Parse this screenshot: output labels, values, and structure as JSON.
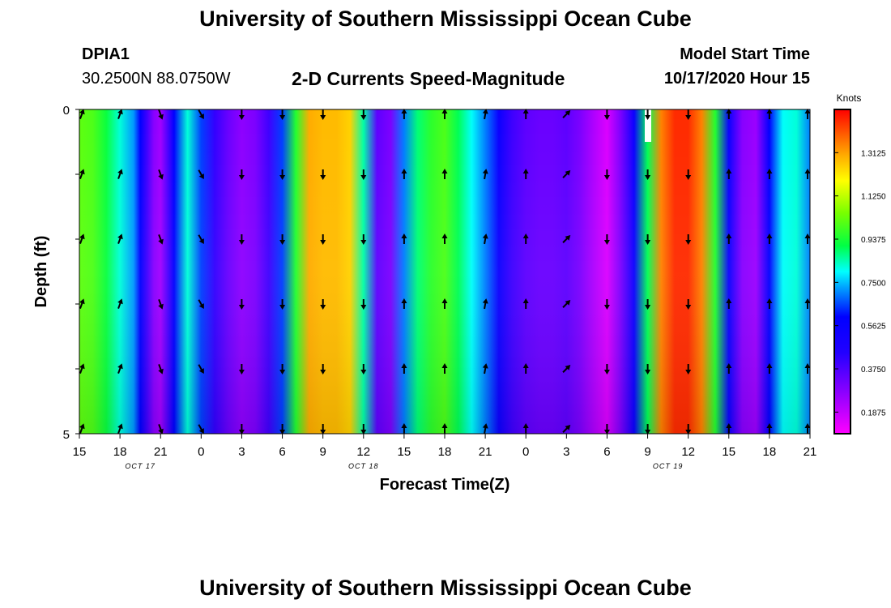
{
  "page": {
    "title_top": "University of Southern Mississippi Ocean Cube",
    "title_bottom": "University of Southern Mississippi Ocean Cube",
    "station_id": "DPIA1",
    "station_coords": "30.2500N 88.0750W",
    "model_start_label": "Model Start Time",
    "model_start_value": "10/17/2020 Hour 15"
  },
  "chart_data": {
    "type": "heatmap",
    "title": "2-D Currents Speed-Magnitude",
    "xlabel": "Forecast Time(Z)",
    "ylabel": "Depth (ft)",
    "colorbar_label": "Knots",
    "colorbar_ticks": [
      "1.3125",
      "1.1250",
      "0.9375",
      "0.7500",
      "0.5625",
      "0.3750",
      "0.1875"
    ],
    "colorbar_range": [
      0.0938,
      1.5
    ],
    "y_ticks": [
      "0",
      "5"
    ],
    "ylim": [
      0,
      5
    ],
    "x_tick_labels": [
      "15",
      "18",
      "21",
      "0",
      "3",
      "6",
      "9",
      "12",
      "15",
      "18",
      "21",
      "0",
      "3",
      "6",
      "9",
      "12",
      "15",
      "18",
      "21"
    ],
    "x_range_hours": [
      0,
      54
    ],
    "date_labels": [
      {
        "text": "OCT 17",
        "hour": 4.5
      },
      {
        "text": "OCT 18",
        "hour": 21
      },
      {
        "text": "OCT 19",
        "hour": 43.5
      }
    ],
    "arrow_depths": [
      0,
      1,
      2,
      3,
      4,
      5
    ],
    "arrow_hours": [
      0,
      3,
      6,
      9,
      12,
      15,
      18,
      21,
      24,
      27,
      30,
      33,
      36,
      39,
      42,
      45,
      48,
      51,
      54
    ],
    "speed_profile_hours": [
      0,
      1,
      2,
      3,
      4,
      4.5,
      5,
      5.5,
      6,
      7,
      8,
      9,
      10,
      11,
      12,
      13,
      14,
      15,
      16,
      17,
      18,
      19,
      20,
      21,
      22,
      23,
      24,
      25,
      26,
      27,
      28,
      29,
      30,
      31,
      32,
      33,
      34,
      35,
      36,
      37,
      38,
      39,
      40,
      41,
      42,
      43,
      44,
      45,
      46,
      47,
      48,
      49,
      50,
      51,
      52,
      53,
      54
    ],
    "speed_profile_knots": [
      1.02,
      1.0,
      0.92,
      0.82,
      0.72,
      0.6,
      0.4,
      0.28,
      0.24,
      0.6,
      0.82,
      0.65,
      0.42,
      0.33,
      0.27,
      0.3,
      0.4,
      0.65,
      0.95,
      1.3,
      1.28,
      1.28,
      1.25,
      0.85,
      0.35,
      0.3,
      0.7,
      0.88,
      0.96,
      1.0,
      0.9,
      0.8,
      0.7,
      0.55,
      0.4,
      0.35,
      0.33,
      0.33,
      0.35,
      0.3,
      0.22,
      0.15,
      0.3,
      0.55,
      0.9,
      1.35,
      1.45,
      1.45,
      1.35,
      0.95,
      0.55,
      0.28,
      0.25,
      0.6,
      0.8,
      0.82,
      0.7
    ],
    "arrow_directions_deg": [
      20,
      20,
      160,
      150,
      180,
      180,
      180,
      180,
      0,
      0,
      10,
      0,
      45,
      180,
      180,
      180,
      0,
      0,
      0
    ]
  }
}
